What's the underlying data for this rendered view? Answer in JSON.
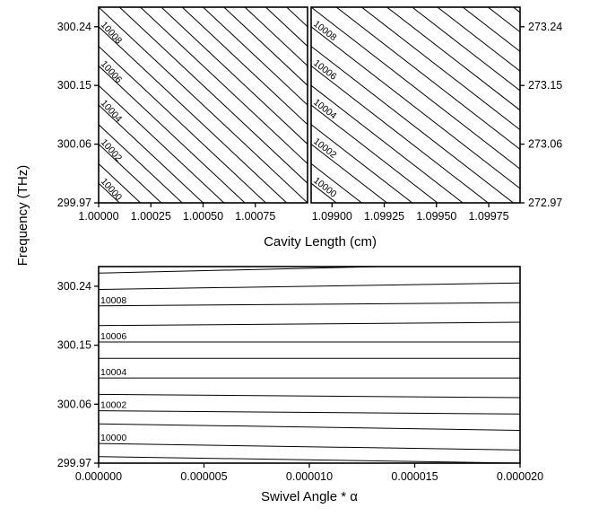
{
  "figure": {
    "shared_ylabel": "Frequency (THz)",
    "top_xlabel": "Cavity Length (cm)"
  },
  "chart_data": [
    {
      "type": "line",
      "panel": "top-left",
      "xlabel": "",
      "ylabel": "",
      "xlim": [
        1.0,
        1.001
      ],
      "ylim": [
        299.97,
        300.27
      ],
      "xticks": [
        "1.00000",
        "1.00025",
        "1.00050",
        "1.00075"
      ],
      "xtick_values": [
        1.0,
        1.00025,
        1.0005,
        1.00075
      ],
      "yticks": [
        "299.97",
        "300.06",
        "300.15",
        "300.24"
      ],
      "ytick_values": [
        299.97,
        300.06,
        300.15,
        300.24
      ],
      "y_axis_side": "left",
      "mode_labels": [
        "10000",
        "10002",
        "10004",
        "10006",
        "10008"
      ],
      "line_count": 26,
      "line_y_step": 0.03,
      "first_line_intercept": 299.97,
      "slope_per_cm": -300,
      "grid": false
    },
    {
      "type": "line",
      "panel": "top-right",
      "xlabel": "",
      "ylabel": "",
      "xlim": [
        1.0989,
        1.0999
      ],
      "ylim": [
        272.97,
        273.27
      ],
      "xticks": [
        "1.09900",
        "1.09925",
        "1.09950",
        "1.09975"
      ],
      "xtick_values": [
        1.099,
        1.09925,
        1.0995,
        1.09975
      ],
      "yticks": [
        "272.97",
        "273.06",
        "273.15",
        "273.24"
      ],
      "ytick_values": [
        272.97,
        273.06,
        273.15,
        273.24
      ],
      "y_axis_side": "right",
      "mode_labels": [
        "10000",
        "10002",
        "10004",
        "10006",
        "10008"
      ],
      "line_count": 26,
      "line_y_step": 0.03,
      "first_line_intercept": 272.97,
      "slope_per_cm": -248,
      "grid": false
    },
    {
      "type": "line",
      "panel": "bottom",
      "xlabel": "Swivel Angle * α",
      "ylabel": "",
      "xlim": [
        0.0,
        2e-05
      ],
      "ylim": [
        299.97,
        300.27
      ],
      "xticks": [
        "0.000000",
        "0.000005",
        "0.000010",
        "0.000015",
        "0.000020"
      ],
      "xtick_values": [
        0.0,
        5e-06,
        1e-05,
        1.5e-05,
        2e-05
      ],
      "yticks": [
        "299.97",
        "300.06",
        "300.15",
        "300.24"
      ],
      "ytick_values": [
        299.97,
        300.06,
        300.15,
        300.24
      ],
      "y_axis_side": "left",
      "mode_labels": [
        "10000",
        "10002",
        "10004",
        "10006",
        "10008"
      ],
      "series": [
        {
          "start": 299.98,
          "end": 299.97
        },
        {
          "start": 300.0,
          "end": 299.99
        },
        {
          "start": 300.03,
          "end": 300.02
        },
        {
          "start": 300.05,
          "end": 300.045
        },
        {
          "start": 300.075,
          "end": 300.07
        },
        {
          "start": 300.1,
          "end": 300.1
        },
        {
          "start": 300.13,
          "end": 300.13
        },
        {
          "start": 300.155,
          "end": 300.155
        },
        {
          "start": 300.18,
          "end": 300.185
        },
        {
          "start": 300.21,
          "end": 300.215
        },
        {
          "start": 300.235,
          "end": 300.245
        },
        {
          "start": 300.26,
          "end": 300.275
        }
      ],
      "grid": false
    }
  ]
}
